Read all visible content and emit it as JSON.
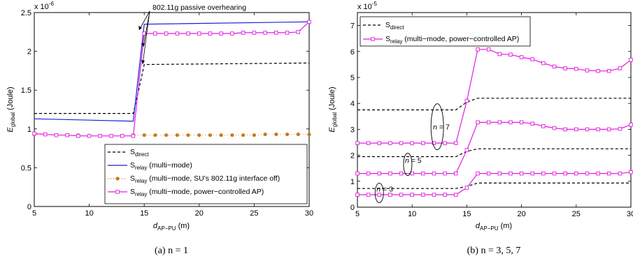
{
  "chart_data": [
    {
      "type": "line",
      "caption": "(a) n = 1",
      "exponent_label": "x 10",
      "exponent_power": "-6",
      "xlabel_main": "d",
      "xlabel_sub": "AP−PU",
      "xlabel_unit": " (m)",
      "ylabel_main": "E",
      "ylabel_sub": "global",
      "ylabel_unit": " (Joule)",
      "xlim": [
        5,
        30
      ],
      "ylim": [
        0,
        2.5
      ],
      "xticks": [
        "5",
        "10",
        "15",
        "20",
        "25",
        "30"
      ],
      "yticks": [
        "0",
        "0.5",
        "1",
        "1.5",
        "2",
        "2.5"
      ],
      "annotation": "802.11g passive overhearing",
      "legend_position": "bottom-right",
      "series": [
        {
          "key": "direct",
          "name_main": "S",
          "name_sub": "direct",
          "name_rest": "",
          "color": "#000000",
          "style": "dashed",
          "marker": "none",
          "x": [
            5,
            14,
            14.5,
            15,
            30
          ],
          "y": [
            1.2,
            1.2,
            1.5,
            1.83,
            1.85
          ]
        },
        {
          "key": "relay_mm",
          "name_main": "S",
          "name_sub": "relay",
          "name_rest": " (multi−mode)",
          "color": "#1c1cd6",
          "style": "solid",
          "marker": "none",
          "x": [
            5,
            14,
            15,
            30
          ],
          "y": [
            1.13,
            1.1,
            2.35,
            2.38
          ]
        },
        {
          "key": "relay_off",
          "name_main": "S",
          "name_sub": "relay",
          "name_rest": " (multi−mode, SU's 802.11g interface off)",
          "color": "#c77a1a",
          "style": "dotted",
          "marker": "dot",
          "x": [
            5,
            6,
            7,
            8,
            9,
            10,
            11,
            12,
            13,
            14,
            15,
            16,
            17,
            18,
            19,
            20,
            21,
            22,
            23,
            24,
            25,
            26,
            27,
            28,
            29,
            30
          ],
          "y": [
            0.93,
            0.93,
            0.92,
            0.92,
            0.92,
            0.91,
            0.91,
            0.91,
            0.91,
            0.92,
            0.92,
            0.92,
            0.92,
            0.92,
            0.92,
            0.92,
            0.92,
            0.92,
            0.92,
            0.92,
            0.92,
            0.93,
            0.93,
            0.93,
            0.93,
            0.93
          ]
        },
        {
          "key": "relay_pc",
          "name_main": "S",
          "name_sub": "relay",
          "name_rest": " (multi−mode, power−controlled AP)",
          "color": "#e01ce0",
          "style": "solid",
          "marker": "square",
          "x": [
            5,
            6,
            7,
            8,
            9,
            10,
            11,
            12,
            13,
            14,
            15,
            16,
            17,
            18,
            19,
            20,
            21,
            22,
            23,
            24,
            25,
            26,
            27,
            28,
            29,
            30
          ],
          "y": [
            0.94,
            0.93,
            0.92,
            0.92,
            0.91,
            0.91,
            0.91,
            0.91,
            0.91,
            0.91,
            2.23,
            2.23,
            2.23,
            2.23,
            2.23,
            2.23,
            2.23,
            2.23,
            2.23,
            2.24,
            2.24,
            2.24,
            2.24,
            2.24,
            2.25,
            2.38
          ]
        }
      ]
    },
    {
      "type": "line",
      "caption": "(b) n = 3, 5, 7",
      "exponent_label": "x 10",
      "exponent_power": "-5",
      "xlabel_main": "d",
      "xlabel_sub": "AP−PU",
      "xlabel_unit": " (m)",
      "ylabel_main": "E",
      "ylabel_sub": "global",
      "ylabel_unit": " (Joule)",
      "xlim": [
        5,
        30
      ],
      "ylim": [
        0,
        7.5
      ],
      "xticks": [
        "5",
        "10",
        "15",
        "20",
        "25",
        "30"
      ],
      "yticks": [
        "0",
        "1",
        "2",
        "3",
        "4",
        "5",
        "6",
        "7"
      ],
      "legend_position": "top-left",
      "ellipse_labels": [
        {
          "text_n": "n",
          "text_val": " = 3",
          "cx": 7.0,
          "cy": 0.55
        },
        {
          "text_n": "n",
          "text_val": " = 5",
          "cx": 9.6,
          "cy": 1.65
        },
        {
          "text_n": "n",
          "text_val": " = 7",
          "cx": 12.3,
          "cy": 3.1
        }
      ],
      "series": [
        {
          "key": "direct3",
          "name_main": "S",
          "name_sub": "direct",
          "name_rest": "",
          "color": "#000000",
          "style": "dashed",
          "marker": "none",
          "x": [
            5,
            14,
            15,
            16,
            30
          ],
          "y": [
            0.72,
            0.72,
            0.8,
            0.93,
            0.93
          ]
        },
        {
          "key": "direct5",
          "name_main": "S",
          "name_sub": "direct",
          "name_rest": "",
          "color": "#000000",
          "style": "dashed",
          "marker": "none",
          "x": [
            5,
            14,
            15,
            16,
            30
          ],
          "y": [
            1.95,
            1.95,
            2.15,
            2.25,
            2.25
          ]
        },
        {
          "key": "direct7",
          "name_main": "S",
          "name_sub": "direct",
          "name_rest": "",
          "color": "#000000",
          "style": "dashed",
          "marker": "none",
          "x": [
            5,
            14,
            15,
            16,
            30
          ],
          "y": [
            3.75,
            3.75,
            4.05,
            4.2,
            4.2
          ]
        },
        {
          "key": "relay3",
          "name_main": "S",
          "name_sub": "relay",
          "name_rest": " (multi−mode, power−controlled AP)",
          "color": "#e01ce0",
          "style": "solid",
          "marker": "square",
          "x": [
            5,
            6,
            7,
            8,
            9,
            10,
            11,
            12,
            13,
            14,
            15,
            16,
            17,
            18,
            19,
            20,
            21,
            22,
            23,
            24,
            25,
            26,
            27,
            28,
            29,
            30
          ],
          "y": [
            0.48,
            0.48,
            0.48,
            0.48,
            0.48,
            0.48,
            0.48,
            0.48,
            0.48,
            0.48,
            0.75,
            1.3,
            1.3,
            1.3,
            1.3,
            1.3,
            1.3,
            1.3,
            1.3,
            1.3,
            1.3,
            1.3,
            1.3,
            1.3,
            1.3,
            1.35
          ]
        },
        {
          "key": "relay5",
          "name_main": "S",
          "name_sub": "relay",
          "name_rest": "",
          "color": "#e01ce0",
          "style": "solid",
          "marker": "square",
          "x": [
            5,
            6,
            7,
            8,
            9,
            10,
            11,
            12,
            13,
            14,
            15,
            16,
            17,
            18,
            19,
            20,
            21,
            22,
            23,
            24,
            25,
            26,
            27,
            28,
            29,
            30
          ],
          "y": [
            1.3,
            1.3,
            1.3,
            1.3,
            1.3,
            1.3,
            1.3,
            1.3,
            1.3,
            1.3,
            2.2,
            3.27,
            3.27,
            3.27,
            3.27,
            3.27,
            3.22,
            3.12,
            3.05,
            3.0,
            3.0,
            3.0,
            3.0,
            3.0,
            3.02,
            3.18
          ]
        },
        {
          "key": "relay7",
          "name_main": "S",
          "name_sub": "relay",
          "name_rest": "",
          "color": "#e01ce0",
          "style": "solid",
          "marker": "square",
          "x": [
            5,
            6,
            7,
            8,
            9,
            10,
            11,
            12,
            13,
            14,
            15,
            16,
            17,
            18,
            19,
            20,
            21,
            22,
            23,
            24,
            25,
            26,
            27,
            28,
            29,
            30
          ],
          "y": [
            2.47,
            2.47,
            2.47,
            2.47,
            2.47,
            2.47,
            2.47,
            2.47,
            2.47,
            2.47,
            4.1,
            6.08,
            6.08,
            5.9,
            5.88,
            5.78,
            5.7,
            5.55,
            5.42,
            5.35,
            5.33,
            5.27,
            5.25,
            5.25,
            5.35,
            5.68
          ]
        }
      ]
    }
  ]
}
